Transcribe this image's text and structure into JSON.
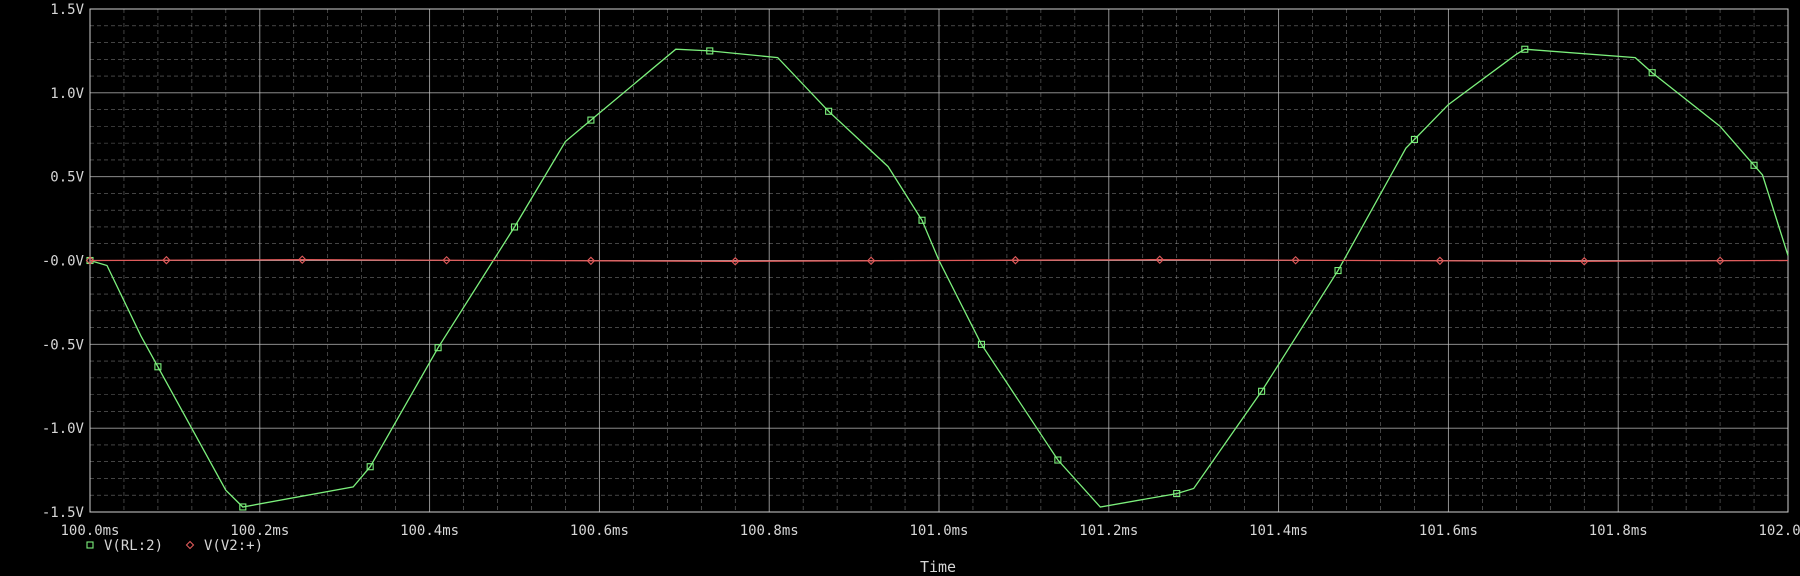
{
  "chart_data": {
    "type": "line",
    "xlabel": "Time",
    "ylabel": "",
    "xlim": [
      100.0,
      102.0
    ],
    "ylim": [
      -1.5,
      1.5
    ],
    "x_unit": "ms",
    "x_ticks": [
      100.0,
      100.2,
      100.4,
      100.6,
      100.8,
      101.0,
      101.2,
      101.4,
      101.6,
      101.8,
      102.0
    ],
    "x_tick_labels": [
      "100.0ms",
      "100.2ms",
      "100.4ms",
      "100.6ms",
      "100.8ms",
      "101.0ms",
      "101.2ms",
      "101.4ms",
      "101.6ms",
      "101.8ms",
      "102.0ms"
    ],
    "y_ticks": [
      1.5,
      1.0,
      0.5,
      0.0,
      -0.5,
      -1.0,
      -1.5
    ],
    "y_tick_labels": [
      "1.5V",
      "1.0V",
      "0.5V",
      "-0.0V",
      "-0.5V",
      "-1.0V",
      "-1.5V"
    ],
    "grid": true,
    "background": "#000000",
    "grid_color": "#c8c8c8",
    "legend_position": "bottom-left",
    "series": [
      {
        "name": "V(RL:2)",
        "color": "#7cf07c",
        "marker": "square",
        "x": [
          100.0,
          100.02,
          100.06,
          100.16,
          100.18,
          100.31,
          100.33,
          100.41,
          100.5,
          100.56,
          100.6,
          100.69,
          100.73,
          100.81,
          100.87,
          100.94,
          100.98,
          101.0,
          101.05,
          101.14,
          101.19,
          101.28,
          101.3,
          101.38,
          101.47,
          101.55,
          101.6,
          101.68,
          101.69,
          101.82,
          101.84,
          101.92,
          101.97,
          102.0
        ],
        "y": [
          0.0,
          -0.03,
          -0.45,
          -1.37,
          -1.47,
          -1.35,
          -1.23,
          -0.52,
          0.2,
          0.71,
          0.88,
          1.26,
          1.25,
          1.21,
          0.89,
          0.56,
          0.24,
          0.0,
          -0.5,
          -1.19,
          -1.47,
          -1.39,
          -1.36,
          -0.78,
          -0.06,
          0.67,
          0.93,
          1.23,
          1.26,
          1.21,
          1.12,
          0.8,
          0.51,
          0.03
        ],
        "marker_x": [
          100.0,
          100.08,
          100.18,
          100.33,
          100.41,
          100.5,
          100.59,
          100.73,
          100.87,
          100.98,
          101.05,
          101.14,
          101.28,
          101.38,
          101.47,
          101.56,
          101.69,
          101.84,
          101.96
        ]
      },
      {
        "name": "V(V2:+)",
        "color": "#e05a5a",
        "marker": "diamond",
        "x": [
          100.0,
          100.25,
          100.5,
          100.75,
          101.0,
          101.25,
          101.5,
          101.75,
          102.0
        ],
        "y": [
          0.0,
          0.005,
          0.0,
          -0.005,
          0.0,
          0.005,
          0.0,
          -0.005,
          0.0
        ],
        "marker_x": [
          100.0,
          100.09,
          100.25,
          100.42,
          100.59,
          100.76,
          100.92,
          101.09,
          101.26,
          101.42,
          101.59,
          101.76,
          101.92
        ]
      }
    ]
  }
}
